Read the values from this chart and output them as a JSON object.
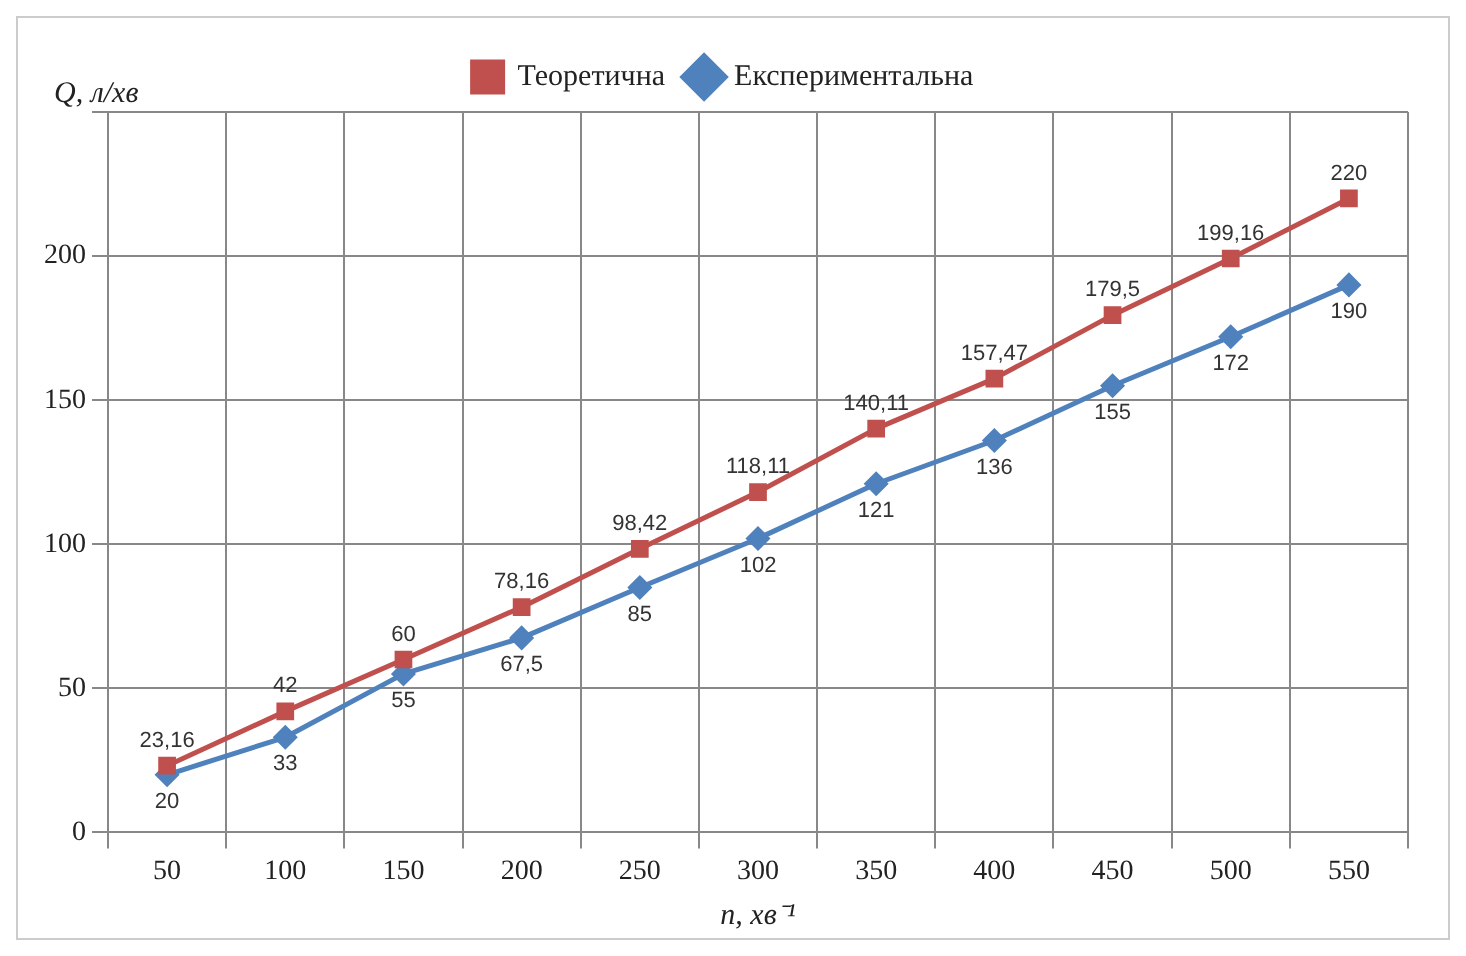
{
  "chart_data": {
    "type": "line",
    "xlabel": "n, хв⁻¹",
    "ylabel": "Q, л/хв",
    "categories": [
      "50",
      "100",
      "150",
      "200",
      "250",
      "300",
      "350",
      "400",
      "450",
      "500",
      "550"
    ],
    "series": [
      {
        "name": "Теоретична",
        "color": "#c0504d",
        "marker": "square",
        "values": [
          23.16,
          42,
          60,
          78.16,
          98.42,
          118.11,
          140.11,
          157.47,
          179.5,
          199.16,
          220
        ],
        "value_labels": [
          "23,16",
          "42",
          "60",
          "78,16",
          "98,42",
          "118,11",
          "140,11",
          "157,47",
          "179,5",
          "199,16",
          "220"
        ]
      },
      {
        "name": "Експериментальна",
        "color": "#4f81bd",
        "marker": "diamond",
        "values": [
          20,
          33,
          55,
          67.5,
          85,
          102,
          121,
          136,
          155,
          172,
          190
        ],
        "value_labels": [
          "20",
          "33",
          "55",
          "67,5",
          "85",
          "102",
          "121",
          "136",
          "155",
          "172",
          "190"
        ]
      }
    ],
    "ylim": [
      0,
      250
    ],
    "yticks": [
      0,
      50,
      100,
      150,
      200,
      {
        "value": 250,
        "label": null
      }
    ],
    "grid": true,
    "legend": "top",
    "line_style": "solid"
  }
}
